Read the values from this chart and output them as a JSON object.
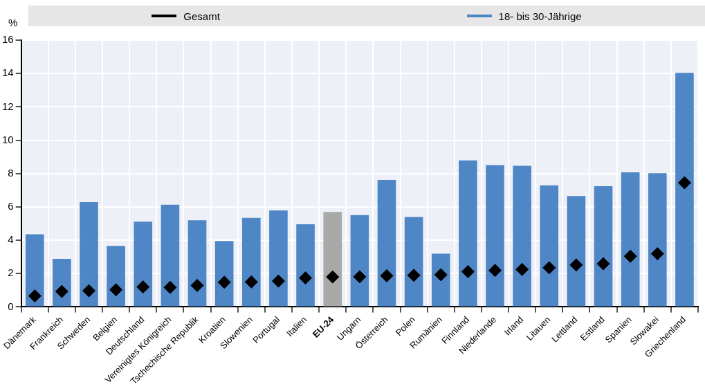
{
  "chart_data": {
    "type": "bar",
    "ylabel": "%",
    "categories": [
      "Dänemark",
      "Frankreich",
      "Schweden",
      "Belgien",
      "Deutschland",
      "Vereinigtes Königreich",
      "Tschechische Republik",
      "Kroatien",
      "Slowenien",
      "Portugal",
      "Italien",
      "EU-24",
      "Ungarn",
      "Österreich",
      "Polen",
      "Rumänien",
      "Finnland",
      "Niederlande",
      "Irland",
      "Litauen",
      "Lettland",
      "Estland",
      "Spanien",
      "Slowakei",
      "Griechenland"
    ],
    "series": [
      {
        "name": "Gesamt",
        "type": "scatter",
        "marker": "diamond",
        "color": "#000000",
        "values": [
          0.66,
          0.93,
          0.97,
          1.03,
          1.2,
          1.17,
          1.29,
          1.48,
          1.5,
          1.55,
          1.74,
          1.8,
          1.81,
          1.87,
          1.9,
          1.93,
          2.12,
          2.19,
          2.25,
          2.35,
          2.52,
          2.59,
          3.04,
          3.19,
          7.45
        ]
      },
      {
        "name": "18- bis 30-Jährige",
        "color": "#4f86c6",
        "colors": [
          "#4f86c6",
          "#4f86c6",
          "#4f86c6",
          "#4f86c6",
          "#4f86c6",
          "#4f86c6",
          "#4f86c6",
          "#4f86c6",
          "#4f86c6",
          "#4f86c6",
          "#4f86c6",
          "#a9a9a9",
          "#4f86c6",
          "#4f86c6",
          "#4f86c6",
          "#4f86c6",
          "#4f86c6",
          "#4f86c6",
          "#4f86c6",
          "#4f86c6",
          "#4f86c6",
          "#4f86c6",
          "#4f86c6",
          "#4f86c6",
          "#4f86c6"
        ],
        "values": [
          4.36,
          2.88,
          6.29,
          3.66,
          5.11,
          6.13,
          5.2,
          3.95,
          5.34,
          5.79,
          4.96,
          5.7,
          5.51,
          7.62,
          5.39,
          3.19,
          8.79,
          8.51,
          8.47,
          7.29,
          6.65,
          7.24,
          8.07,
          8.02,
          14.04
        ]
      }
    ],
    "ylim": [
      0,
      16
    ],
    "yticks": [
      0,
      2,
      4,
      6,
      8,
      10,
      12,
      14,
      16
    ],
    "grid": true,
    "legend": "top"
  }
}
